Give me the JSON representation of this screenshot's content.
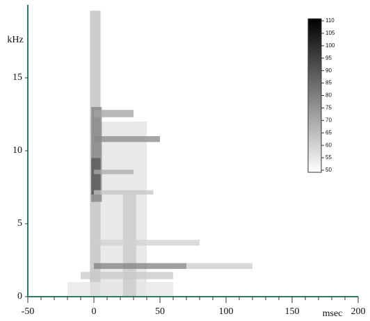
{
  "chart_data": {
    "type": "spectrogram",
    "xlabel": "msec",
    "ylabel": "kHz",
    "xlim": [
      -50,
      200
    ],
    "xticks": [
      -50,
      0,
      50,
      100,
      150,
      200
    ],
    "xminor": 10,
    "ylim": [
      0,
      20
    ],
    "yticks": [
      0,
      5,
      10,
      15
    ],
    "clim": [
      50,
      110
    ],
    "cticks": [
      110,
      105,
      100,
      95,
      90,
      85,
      80,
      75,
      70,
      65,
      60,
      55,
      50
    ],
    "low_color": "#ffffff",
    "high_color": "#000000",
    "axis_color": "#2e7d5b",
    "blocks": [
      {
        "x": [
          -3,
          5
        ],
        "y": [
          0,
          19.6
        ],
        "level": 66
      },
      {
        "x": [
          5,
          40
        ],
        "y": [
          0,
          12
        ],
        "level": 57
      },
      {
        "x": [
          -20,
          60
        ],
        "y": [
          0,
          1
        ],
        "level": 56
      },
      {
        "x": [
          22,
          32
        ],
        "y": [
          0,
          7
        ],
        "level": 63
      },
      {
        "x": [
          -2,
          6
        ],
        "y": [
          6.5,
          13
        ],
        "level": 80
      },
      {
        "x": [
          -2,
          5
        ],
        "y": [
          7,
          9.5
        ],
        "level": 90
      },
      {
        "x": [
          0,
          50
        ],
        "y": [
          10.6,
          11
        ],
        "level": 78
      },
      {
        "x": [
          0,
          30
        ],
        "y": [
          12.3,
          12.8
        ],
        "level": 72
      },
      {
        "x": [
          0,
          30
        ],
        "y": [
          8.4,
          8.7
        ],
        "level": 70
      },
      {
        "x": [
          0,
          45
        ],
        "y": [
          7,
          7.3
        ],
        "level": 64
      },
      {
        "x": [
          0,
          70
        ],
        "y": [
          1.9,
          2.3
        ],
        "level": 80
      },
      {
        "x": [
          70,
          120
        ],
        "y": [
          1.9,
          2.3
        ],
        "level": 62
      },
      {
        "x": [
          0,
          80
        ],
        "y": [
          3.5,
          3.9
        ],
        "level": 61
      },
      {
        "x": [
          -10,
          60
        ],
        "y": [
          1.2,
          1.7
        ],
        "level": 63
      }
    ]
  }
}
